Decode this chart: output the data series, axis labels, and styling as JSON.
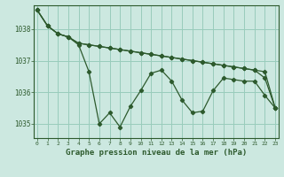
{
  "bg_color": "#cce8e0",
  "grid_color": "#99ccbb",
  "line_color": "#2d5a2d",
  "marker_color": "#2d5a2d",
  "xlabel": "Graphe pression niveau de la mer (hPa)",
  "xlabel_fontsize": 6.5,
  "ytick_labels": [
    "1035",
    "1036",
    "1037",
    "1038"
  ],
  "yticks": [
    1035,
    1036,
    1037,
    1038
  ],
  "xticks": [
    0,
    1,
    2,
    3,
    4,
    5,
    6,
    7,
    8,
    9,
    10,
    11,
    12,
    13,
    14,
    15,
    16,
    17,
    18,
    19,
    20,
    21,
    22,
    23
  ],
  "xlim": [
    -0.3,
    23.3
  ],
  "ylim": [
    1034.55,
    1038.75
  ],
  "series1": [
    1038.6,
    1038.1,
    1037.85,
    1037.75,
    1037.5,
    1036.65,
    1035.0,
    1035.35,
    1034.9,
    1035.55,
    1036.05,
    1036.6,
    1036.7,
    1036.35,
    1035.75,
    1035.35,
    1035.4,
    1036.05,
    1036.45,
    1036.4,
    1036.35,
    1036.35,
    1035.9,
    1035.5
  ],
  "series2": [
    1038.6,
    1038.1,
    1037.85,
    1037.75,
    1037.55,
    1037.5,
    1037.45,
    1037.4,
    1037.35,
    1037.3,
    1037.25,
    1037.2,
    1037.15,
    1037.1,
    1037.05,
    1037.0,
    1036.95,
    1036.9,
    1036.85,
    1036.8,
    1036.75,
    1036.7,
    1036.65,
    1035.5
  ],
  "series3": [
    1038.6,
    1038.1,
    1037.85,
    1037.75,
    1037.55,
    1037.5,
    1037.45,
    1037.4,
    1037.35,
    1037.3,
    1037.25,
    1037.2,
    1037.15,
    1037.1,
    1037.05,
    1037.0,
    1036.95,
    1036.9,
    1036.85,
    1036.8,
    1036.75,
    1036.7,
    1036.45,
    1035.5
  ]
}
